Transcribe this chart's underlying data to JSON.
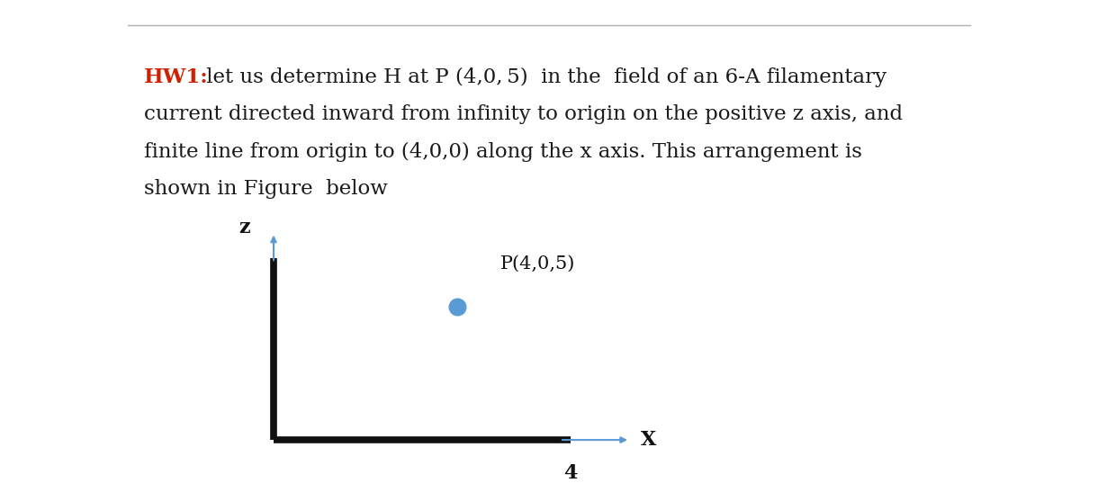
{
  "background_color": "#ffffff",
  "top_line_color": "#b0b0b0",
  "hw_label": "HW1:",
  "hw_label_color": "#cc2200",
  "body_text_line1": " let us determine H at P (4,0, 5)  in the  field of an 6-A filamentary",
  "body_text_line2": "current directed inward from infinity to origin on the positive z axis, and",
  "body_text_line3": "finite line from origin to (4,0,0) along the x axis. This arrangement is",
  "body_text_line4": "shown in Figure  below",
  "body_text_color": "#1a1a1a",
  "text_fontsize": 16.5,
  "z_label": "z",
  "x_label": "X",
  "label_4": "4",
  "point_label": "P(4,0,5)",
  "point_color": "#5b9bd5",
  "point_size": 180,
  "axis_color": "#111111",
  "wire_linewidth": 5.5,
  "arrow_color": "#5b9bd5",
  "label_color": "#111111",
  "font_family": "DejaVu Serif",
  "diagram_ox": 0.245,
  "diagram_oy": 0.075,
  "diagram_ztop": 0.465,
  "diagram_xend": 0.52,
  "diagram_arrow_ext": 0.055,
  "point_fx": 0.415,
  "point_fy": 0.36
}
